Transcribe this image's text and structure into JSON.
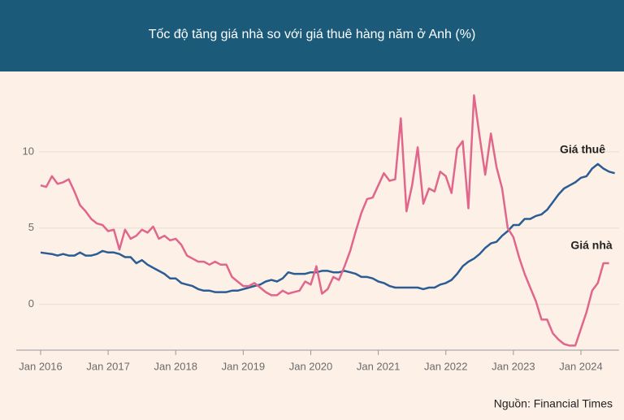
{
  "chart_data": {
    "type": "line",
    "title": "Tốc độ tăng giá nhà so với giá thuê hàng năm ở Anh (%)",
    "source": "Nguồn: Financial Times",
    "categories": [
      "Jan 2016",
      null,
      null,
      null,
      null,
      null,
      null,
      null,
      null,
      null,
      null,
      null,
      "Jan 2017",
      null,
      null,
      null,
      null,
      null,
      null,
      null,
      null,
      null,
      null,
      null,
      "Jan 2018",
      null,
      null,
      null,
      null,
      null,
      null,
      null,
      null,
      null,
      null,
      null,
      "Jan 2019",
      null,
      null,
      null,
      null,
      null,
      null,
      null,
      null,
      null,
      null,
      null,
      "Jan 2020",
      null,
      null,
      null,
      null,
      null,
      null,
      null,
      null,
      null,
      null,
      null,
      "Jan 2021",
      null,
      null,
      null,
      null,
      null,
      null,
      null,
      null,
      null,
      null,
      null,
      "Jan 2022",
      null,
      null,
      null,
      null,
      null,
      null,
      null,
      null,
      null,
      null,
      null,
      "Jan 2023",
      null,
      null,
      null,
      null,
      null,
      null,
      null,
      null,
      null,
      null,
      null,
      "Jan 2024",
      null,
      null,
      null,
      null,
      null,
      null
    ],
    "series": [
      {
        "name": "Giá thuê",
        "color": "#2b5c94",
        "values": [
          3.4,
          3.35,
          3.3,
          3.2,
          3.3,
          3.2,
          3.2,
          3.4,
          3.2,
          3.2,
          3.3,
          3.5,
          3.4,
          3.4,
          3.3,
          3.1,
          3.1,
          2.7,
          2.9,
          2.6,
          2.4,
          2.2,
          2.0,
          1.7,
          1.7,
          1.4,
          1.3,
          1.2,
          1.0,
          0.9,
          0.9,
          0.8,
          0.8,
          0.8,
          0.9,
          0.9,
          1.0,
          1.1,
          1.2,
          1.3,
          1.5,
          1.6,
          1.5,
          1.7,
          2.1,
          2.0,
          2.0,
          2.0,
          2.1,
          2.1,
          2.2,
          2.2,
          2.1,
          2.1,
          2.2,
          2.1,
          2.0,
          1.8,
          1.8,
          1.7,
          1.5,
          1.4,
          1.2,
          1.1,
          1.1,
          1.1,
          1.1,
          1.1,
          1.0,
          1.1,
          1.1,
          1.3,
          1.4,
          1.6,
          2.0,
          2.5,
          2.8,
          3.0,
          3.3,
          3.7,
          4.0,
          4.1,
          4.5,
          4.8,
          5.2,
          5.2,
          5.6,
          5.6,
          5.8,
          5.9,
          6.2,
          6.7,
          7.2,
          7.6,
          7.8,
          8.0,
          8.3,
          8.4,
          8.9,
          9.2,
          8.9,
          8.7,
          8.6
        ]
      },
      {
        "name": "Giá nhà",
        "color": "#e0668c",
        "values": [
          7.8,
          7.7,
          8.4,
          7.9,
          8.0,
          8.2,
          7.4,
          6.5,
          6.1,
          5.6,
          5.3,
          5.2,
          4.8,
          4.9,
          3.6,
          4.9,
          4.3,
          4.5,
          4.9,
          4.7,
          5.1,
          4.3,
          4.5,
          4.2,
          4.3,
          3.9,
          3.2,
          3.0,
          2.8,
          2.8,
          2.6,
          2.8,
          2.6,
          2.6,
          1.8,
          1.5,
          1.2,
          1.2,
          1.4,
          1.1,
          0.8,
          0.6,
          0.6,
          0.9,
          0.7,
          0.8,
          0.9,
          1.5,
          1.3,
          2.5,
          0.7,
          1.0,
          1.8,
          1.6,
          2.5,
          3.5,
          4.8,
          6.0,
          6.9,
          7.0,
          7.8,
          8.6,
          8.1,
          8.2,
          12.2,
          6.1,
          7.8,
          10.3,
          6.6,
          7.6,
          7.4,
          8.7,
          8.4,
          7.3,
          10.2,
          10.7,
          6.3,
          13.7,
          11.0,
          8.5,
          11.2,
          9.0,
          7.6,
          5.0,
          4.4,
          3.1,
          2.0,
          1.1,
          0.2,
          -1.0,
          -1.0,
          -1.9,
          -2.3,
          -2.6,
          -2.7,
          -2.7,
          -1.6,
          -0.5,
          0.9,
          1.4,
          2.7,
          2.7,
          null
        ]
      }
    ],
    "ylim": [
      -3,
      15
    ],
    "yticks": [
      0,
      5,
      10
    ],
    "grid": true
  }
}
